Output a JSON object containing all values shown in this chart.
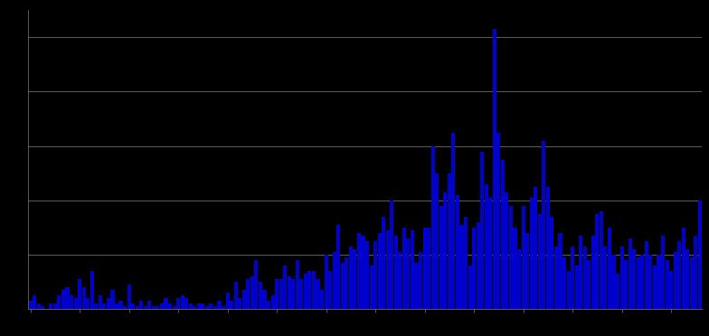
{
  "title": "",
  "background_color": "#000000",
  "bar_color": "#0000cc",
  "grid_color": "#808080",
  "axis_color": "#808080",
  "values": [
    3,
    5,
    2,
    1,
    0,
    2,
    2,
    5,
    7,
    8,
    5,
    4,
    11,
    8,
    4,
    14,
    2,
    5,
    2,
    4,
    7,
    2,
    3,
    1,
    9,
    2,
    1,
    3,
    1,
    3,
    1,
    1,
    2,
    4,
    2,
    1,
    4,
    5,
    4,
    2,
    1,
    2,
    2,
    1,
    2,
    1,
    3,
    1,
    6,
    3,
    10,
    4,
    7,
    11,
    12,
    18,
    10,
    7,
    3,
    5,
    11,
    11,
    16,
    12,
    11,
    18,
    11,
    13,
    14,
    14,
    11,
    7,
    20,
    14,
    21,
    31,
    17,
    19,
    23,
    22,
    28,
    27,
    25,
    16,
    25,
    28,
    34,
    29,
    40,
    27,
    21,
    30,
    26,
    29,
    17,
    21,
    30,
    30,
    60,
    50,
    38,
    43,
    50,
    65,
    42,
    31,
    34,
    16,
    30,
    32,
    58,
    46,
    41,
    103,
    65,
    55,
    43,
    38,
    30,
    22,
    38,
    28,
    41,
    45,
    35,
    62,
    45,
    34,
    23,
    28,
    19,
    14,
    23,
    16,
    27,
    23,
    18,
    27,
    35,
    36,
    23,
    30,
    20,
    13,
    23,
    18,
    26,
    22,
    19,
    20,
    25,
    20,
    16,
    20,
    27,
    18,
    14,
    21,
    25,
    30,
    22,
    19,
    27,
    40
  ],
  "ylim": [
    0,
    110
  ],
  "ytick_positions": [
    0,
    20,
    40,
    60,
    80,
    100
  ],
  "figsize": [
    7.84,
    3.72
  ],
  "dpi": 100
}
